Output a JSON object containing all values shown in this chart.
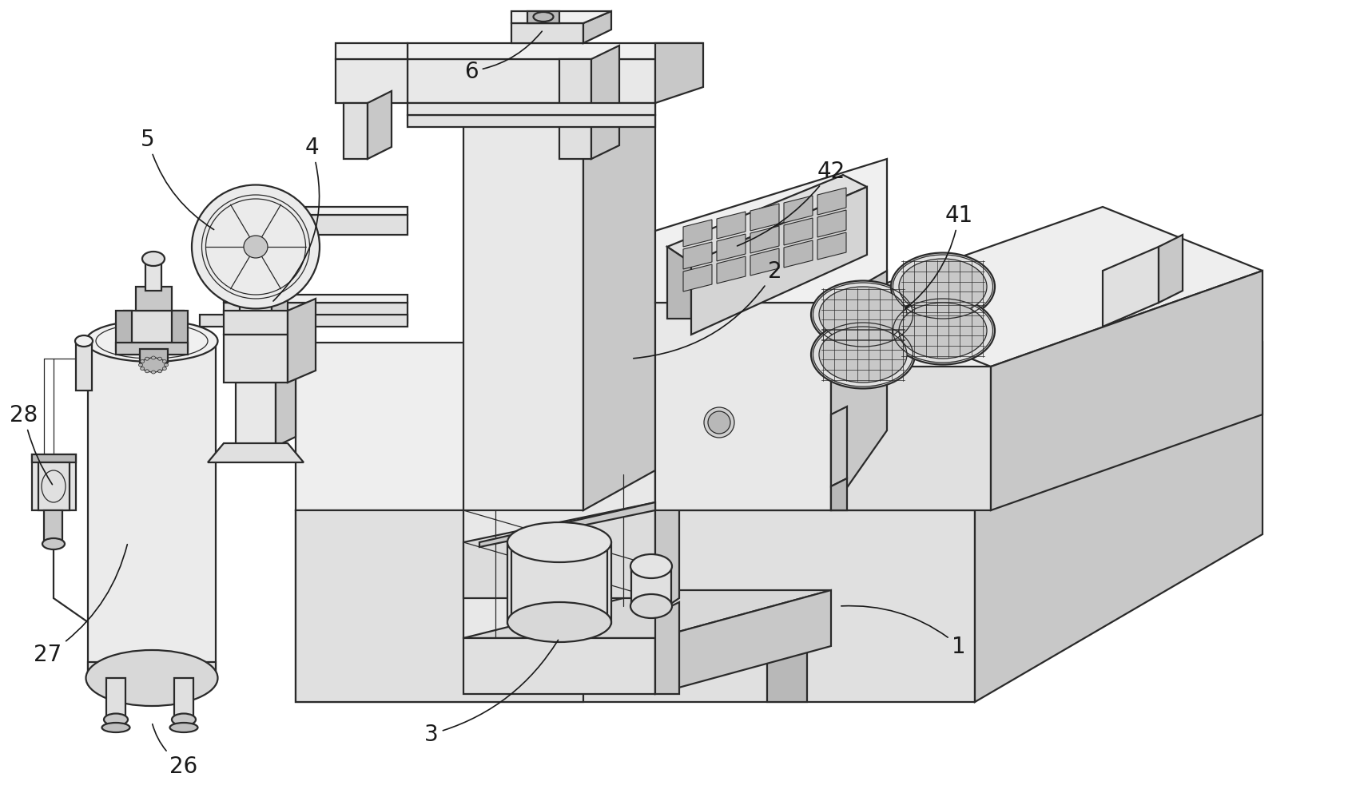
{
  "bg_color": "#ffffff",
  "line_color": "#2a2a2a",
  "label_color": "#1a1a1a",
  "figsize": [
    17.07,
    10.04
  ],
  "dpi": 100,
  "font_size": 20,
  "lw_main": 1.6,
  "lw_thin": 0.9,
  "face_light": "#f0f0f0",
  "face_mid": "#e0e0e0",
  "face_dark": "#c8c8c8",
  "face_darker": "#b8b8b8"
}
